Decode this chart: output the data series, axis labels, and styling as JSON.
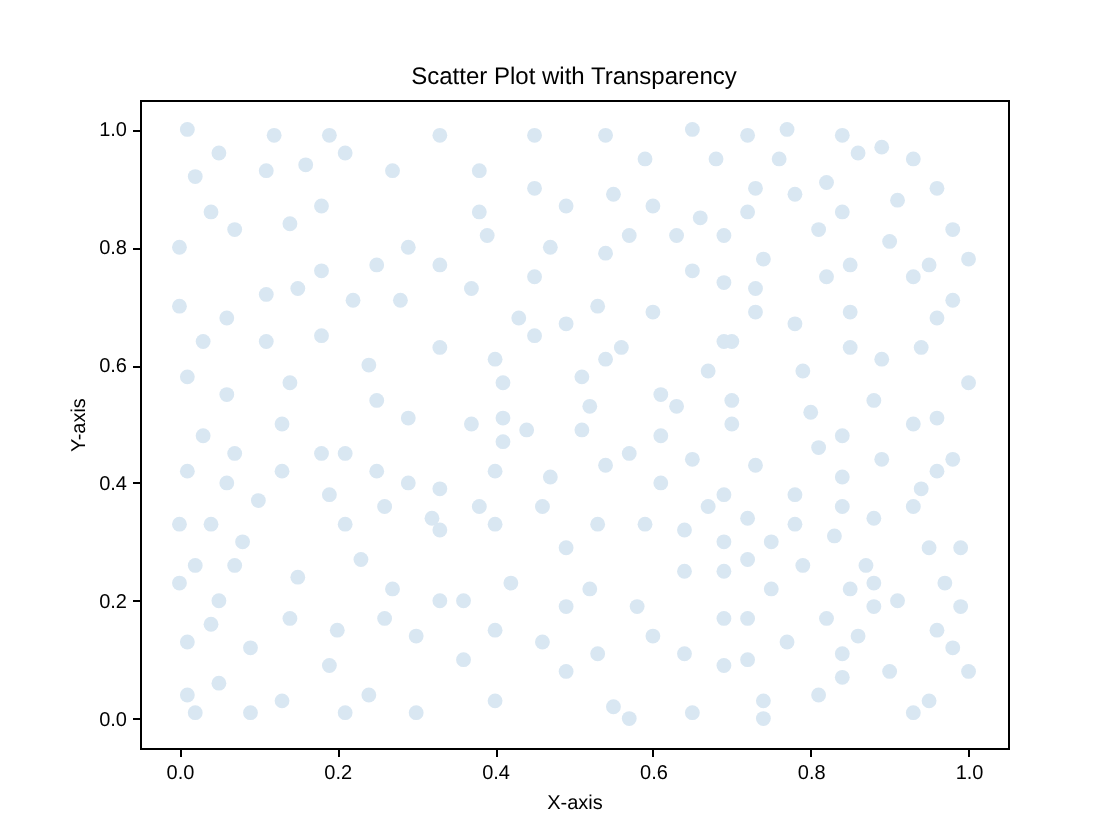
{
  "chart_data": {
    "type": "scatter",
    "title": "Scatter Plot with Transparency",
    "xlabel": "X-axis",
    "ylabel": "Y-axis",
    "color": "#d9e7f2",
    "marker": "circle",
    "xlim": [
      -0.05,
      1.05
    ],
    "ylim": [
      -0.05,
      1.05
    ],
    "xticks": [
      {
        "value": 0,
        "label": "0.0"
      },
      {
        "value": 0.2,
        "label": "0.2"
      },
      {
        "value": 0.4,
        "label": "0.4"
      },
      {
        "value": 0.6,
        "label": "0.6"
      },
      {
        "value": 0.8,
        "label": "0.8"
      },
      {
        "value": 1,
        "label": "1.0"
      }
    ],
    "yticks": [
      {
        "value": 0,
        "label": "0.0"
      },
      {
        "value": 0.2,
        "label": "0.2"
      },
      {
        "value": 0.4,
        "label": "0.4"
      },
      {
        "value": 0.6,
        "label": "0.6"
      },
      {
        "value": 0.8,
        "label": "0.8"
      },
      {
        "value": 1,
        "label": "1.0"
      }
    ],
    "x": [
      0.01,
      0.05,
      0.12,
      0.19,
      0.21,
      0.02,
      0.04,
      0.11,
      0.16,
      0.18,
      0.27,
      0,
      0.07,
      0.14,
      0.18,
      0.25,
      0.29,
      0,
      0.06,
      0.11,
      0.15,
      0.22,
      0.28,
      0.03,
      0.11,
      0.18,
      0.01,
      0.14,
      0.24,
      0.06,
      0.25,
      0.29,
      0.33,
      0.45,
      0.54,
      0.65,
      0.68,
      0.38,
      0.45,
      0.55,
      0.59,
      0.38,
      0.49,
      0.6,
      0.66,
      0.39,
      0.47,
      0.57,
      0.63,
      0.33,
      0.45,
      0.54,
      0.65,
      0.37,
      0.53,
      0.6,
      0.69,
      0.43,
      0.49,
      0.69,
      0.33,
      0.45,
      0.56,
      0.4,
      0.54,
      0.67,
      0.41,
      0.51,
      0.61,
      0.41,
      0.52,
      0.63,
      0.72,
      0.77,
      0.84,
      0.89,
      0.76,
      0.86,
      0.93,
      0.73,
      0.82,
      0.96,
      0.78,
      0.91,
      0.72,
      0.84,
      0.69,
      0.81,
      0.9,
      0.98,
      0.74,
      0.85,
      0.95,
      1,
      0.73,
      0.82,
      0.93,
      0.98,
      0.85,
      0.73,
      0.96,
      0.78,
      0.7,
      0.85,
      0.94,
      0.89,
      1,
      0.79,
      0.7,
      0.88,
      0.8,
      0.96,
      0.03,
      0.07,
      0.13,
      0.18,
      0.21,
      0.01,
      0.06,
      0.13,
      0.19,
      0.25,
      0.29,
      0,
      0.04,
      0.1,
      0.08,
      0.21,
      0.26,
      0.32,
      0.02,
      0,
      0.07,
      0.15,
      0.23,
      0.27,
      0.33,
      0.05,
      0.01,
      0.04,
      0.09,
      0.14,
      0.2,
      0.26,
      0.3,
      0.01,
      0.02,
      0.05,
      0.09,
      0.13,
      0.19,
      0.21,
      0.24,
      0.3,
      0.37,
      0.44,
      0.51,
      0.41,
      0.4,
      0.47,
      0.54,
      0.57,
      0.61,
      0.65,
      0.61,
      0.69,
      0.33,
      0.38,
      0.33,
      0.4,
      0.46,
      0.49,
      0.53,
      0.59,
      0.64,
      0.69,
      0.67,
      0.36,
      0.42,
      0.49,
      0.52,
      0.58,
      0.64,
      0.69,
      0.36,
      0.4,
      0.4,
      0.46,
      0.49,
      0.53,
      0.55,
      0.57,
      0.6,
      0.65,
      0.64,
      0.69,
      0.7,
      0.93,
      0.73,
      0.81,
      0.84,
      0.84,
      0.89,
      0.96,
      0.98,
      0.94,
      0.78,
      0.84,
      0.93,
      0.72,
      0.78,
      0.88,
      0.75,
      0.83,
      0.95,
      0.99,
      0.72,
      0.79,
      0.87,
      0.69,
      0.88,
      0.75,
      0.85,
      0.91,
      0.97,
      0.72,
      0.82,
      0.88,
      0.96,
      0.99,
      0.77,
      0.86,
      0.98,
      0.72,
      0.84,
      0.9,
      1,
      0.84,
      0.81,
      0.74,
      0.74,
      0.95,
      0.93
    ],
    "values": [
      1,
      0.96,
      0.99,
      0.99,
      0.96,
      0.92,
      0.86,
      0.93,
      0.94,
      0.87,
      0.93,
      0.8,
      0.83,
      0.84,
      0.76,
      0.77,
      0.8,
      0.7,
      0.68,
      0.72,
      0.73,
      0.71,
      0.71,
      0.64,
      0.64,
      0.65,
      0.58,
      0.57,
      0.6,
      0.55,
      0.54,
      0.51,
      0.99,
      0.99,
      0.99,
      1,
      0.95,
      0.93,
      0.9,
      0.89,
      0.95,
      0.86,
      0.87,
      0.87,
      0.85,
      0.82,
      0.8,
      0.82,
      0.82,
      0.77,
      0.75,
      0.79,
      0.76,
      0.73,
      0.7,
      0.69,
      0.74,
      0.68,
      0.67,
      0.64,
      0.63,
      0.65,
      0.63,
      0.61,
      0.61,
      0.59,
      0.57,
      0.58,
      0.55,
      0.51,
      0.53,
      0.53,
      0.99,
      1,
      0.99,
      0.97,
      0.95,
      0.96,
      0.95,
      0.9,
      0.91,
      0.9,
      0.89,
      0.88,
      0.86,
      0.86,
      0.82,
      0.83,
      0.81,
      0.83,
      0.78,
      0.77,
      0.77,
      0.78,
      0.73,
      0.75,
      0.75,
      0.71,
      0.69,
      0.69,
      0.68,
      0.67,
      0.64,
      0.63,
      0.63,
      0.61,
      0.57,
      0.59,
      0.54,
      0.54,
      0.52,
      0.51,
      0.48,
      0.45,
      0.5,
      0.45,
      0.45,
      0.42,
      0.4,
      0.42,
      0.38,
      0.42,
      0.4,
      0.33,
      0.33,
      0.37,
      0.3,
      0.33,
      0.36,
      0.34,
      0.26,
      0.23,
      0.26,
      0.24,
      0.27,
      0.22,
      0.2,
      0.2,
      0.13,
      0.16,
      0.12,
      0.17,
      0.15,
      0.17,
      0.14,
      0.04,
      0.01,
      0.06,
      0.01,
      0.03,
      0.09,
      0.01,
      0.04,
      0.01,
      0.5,
      0.49,
      0.49,
      0.47,
      0.42,
      0.41,
      0.43,
      0.45,
      0.48,
      0.44,
      0.4,
      0.38,
      0.39,
      0.36,
      0.32,
      0.33,
      0.36,
      0.29,
      0.33,
      0.33,
      0.32,
      0.3,
      0.36,
      0.2,
      0.23,
      0.19,
      0.22,
      0.19,
      0.25,
      0.17,
      0.1,
      0.15,
      0.03,
      0.13,
      0.08,
      0.11,
      0.02,
      0,
      0.14,
      0.01,
      0.11,
      0.09,
      0.5,
      0.5,
      0.43,
      0.46,
      0.48,
      0.41,
      0.44,
      0.42,
      0.44,
      0.39,
      0.38,
      0.36,
      0.36,
      0.34,
      0.33,
      0.34,
      0.3,
      0.31,
      0.29,
      0.29,
      0.27,
      0.26,
      0.26,
      0.25,
      0.23,
      0.22,
      0.22,
      0.2,
      0.23,
      0.17,
      0.17,
      0.19,
      0.15,
      0.19,
      0.13,
      0.14,
      0.12,
      0.1,
      0.11,
      0.08,
      0.08,
      0.07,
      0.04,
      0.03,
      0,
      0.03,
      0.01
    ]
  }
}
